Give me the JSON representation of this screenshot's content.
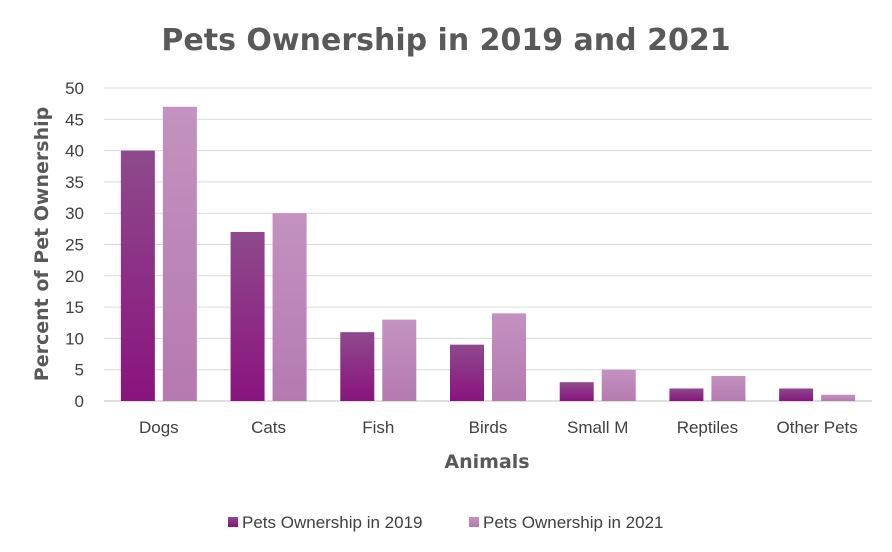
{
  "chart_data": {
    "type": "bar",
    "title": "Pets Ownership in 2019 and 2021",
    "xlabel": "Animals",
    "ylabel": "Percent of Pet Ownership",
    "categories": [
      "Dogs",
      "Cats",
      "Fish",
      "Birds",
      "Small M",
      "Reptiles",
      "Other Pets"
    ],
    "series": [
      {
        "name": "Pets Ownership in 2019",
        "values": [
          40,
          27,
          11,
          9,
          3,
          2,
          2
        ],
        "color": "#8b1a7f"
      },
      {
        "name": "Pets Ownership in 2021",
        "values": [
          47,
          30,
          13,
          14,
          5,
          4,
          1
        ],
        "color": "#b678b0"
      }
    ],
    "ylim": [
      0,
      50
    ],
    "yticks": [
      "0",
      "5",
      "10",
      "15",
      "20",
      "25",
      "30",
      "35",
      "40",
      "45",
      "50"
    ],
    "grid": true,
    "legend_position": "bottom"
  }
}
